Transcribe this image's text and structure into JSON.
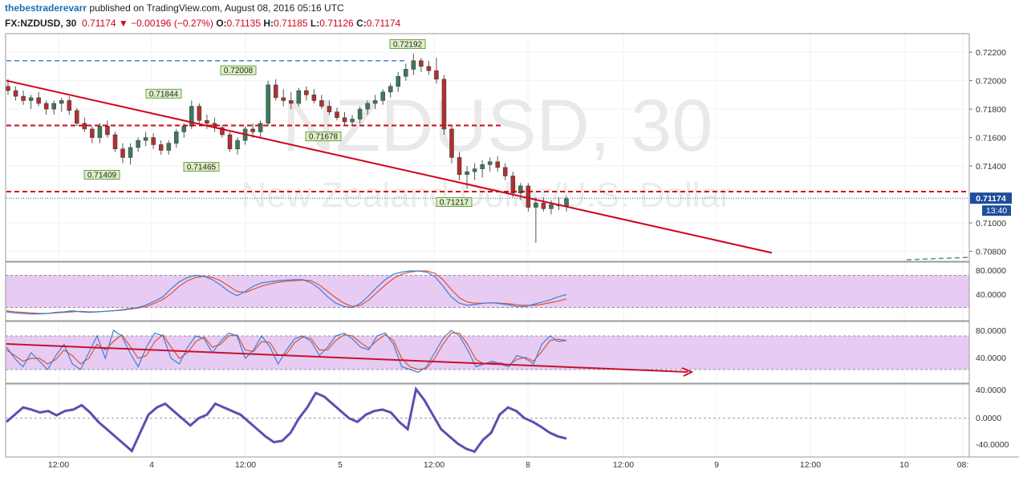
{
  "header": {
    "author": "thebestraderevarr",
    "published": " published on TradingView.com, August 08, 2016 05:16 UTC",
    "symbol": "FX:NZDUSD, 30",
    "last": "0.71174",
    "change": "−0.00196 (−0.27%)",
    "open_label": "O:",
    "open": "0.71135",
    "high_label": "H:",
    "high": "0.71185",
    "low_label": "L:",
    "low": "0.71126",
    "close_label": "C:",
    "close": "0.71174"
  },
  "watermark": {
    "line1": "NZDUSD, 30",
    "line2": "New Zealand Dollar/U.S. Dollar"
  },
  "price_axis": {
    "ticks": [
      "0.72200",
      "0.72000",
      "0.71800",
      "0.71600",
      "0.71400",
      "0.71000",
      "0.70800"
    ],
    "tick_values": [
      0.722,
      0.72,
      0.718,
      0.716,
      0.714,
      0.71,
      0.708
    ],
    "current_price": "0.71174",
    "countdown": "13:40"
  },
  "osc_axis_1": {
    "ticks": [
      "80.0000",
      "40.0000"
    ]
  },
  "osc_axis_2": {
    "ticks": [
      "80.0000",
      "40.0000"
    ]
  },
  "osc_axis_3": {
    "ticks": [
      "40.0000",
      "0.0000",
      "-40.0000"
    ]
  },
  "time_axis": {
    "labels": [
      "12:00",
      "4",
      "12:00",
      "5",
      "12:00",
      "8",
      "12:00",
      "9",
      "12:00",
      "10",
      "08:"
    ]
  },
  "chart_data": {
    "type": "candlestick",
    "title": "NZDUSD, 30",
    "subtitle": "New Zealand Dollar/U.S. Dollar",
    "x_labels": [
      "12:00",
      "4",
      "12:00",
      "5",
      "12:00",
      "8",
      "12:00",
      "9",
      "12:00",
      "10"
    ],
    "y_range": [
      0.7073,
      0.7233
    ],
    "ohlc": [
      [
        0.7196,
        0.7201,
        0.719,
        0.7193
      ],
      [
        0.7193,
        0.7196,
        0.7186,
        0.7189
      ],
      [
        0.7189,
        0.7193,
        0.7183,
        0.7186
      ],
      [
        0.7186,
        0.719,
        0.718,
        0.7188
      ],
      [
        0.7188,
        0.7192,
        0.7182,
        0.7184
      ],
      [
        0.7184,
        0.7186,
        0.7176,
        0.718
      ],
      [
        0.718,
        0.7186,
        0.7176,
        0.7184
      ],
      [
        0.7184,
        0.7188,
        0.7178,
        0.7186
      ],
      [
        0.7186,
        0.7189,
        0.7176,
        0.7179
      ],
      [
        0.7179,
        0.7181,
        0.7168,
        0.717
      ],
      [
        0.717,
        0.7174,
        0.7164,
        0.7166
      ],
      [
        0.7166,
        0.7168,
        0.7156,
        0.716
      ],
      [
        0.716,
        0.717,
        0.7156,
        0.7168
      ],
      [
        0.7168,
        0.7172,
        0.716,
        0.7162
      ],
      [
        0.7162,
        0.7164,
        0.715,
        0.7152
      ],
      [
        0.7152,
        0.7156,
        0.7142,
        0.7146
      ],
      [
        0.7146,
        0.7156,
        0.7141,
        0.7153
      ],
      [
        0.7153,
        0.716,
        0.715,
        0.7158
      ],
      [
        0.7158,
        0.7164,
        0.7154,
        0.716
      ],
      [
        0.716,
        0.7163,
        0.7152,
        0.7155
      ],
      [
        0.7155,
        0.7158,
        0.7148,
        0.7151
      ],
      [
        0.7151,
        0.7158,
        0.7148,
        0.7156
      ],
      [
        0.7156,
        0.7166,
        0.7153,
        0.7164
      ],
      [
        0.7164,
        0.717,
        0.716,
        0.7168
      ],
      [
        0.7168,
        0.7186,
        0.7166,
        0.7182
      ],
      [
        0.7182,
        0.7184,
        0.717,
        0.7172
      ],
      [
        0.7172,
        0.7176,
        0.7166,
        0.717
      ],
      [
        0.717,
        0.7174,
        0.7164,
        0.7167
      ],
      [
        0.7167,
        0.7169,
        0.716,
        0.7162
      ],
      [
        0.7162,
        0.7164,
        0.715,
        0.7152
      ],
      [
        0.7152,
        0.716,
        0.7148,
        0.7158
      ],
      [
        0.7158,
        0.7168,
        0.7155,
        0.7166
      ],
      [
        0.7166,
        0.717,
        0.716,
        0.7164
      ],
      [
        0.7164,
        0.7172,
        0.716,
        0.717
      ],
      [
        0.717,
        0.72,
        0.7168,
        0.7197
      ],
      [
        0.7197,
        0.7201,
        0.7186,
        0.7188
      ],
      [
        0.7188,
        0.7194,
        0.7182,
        0.7186
      ],
      [
        0.7186,
        0.7192,
        0.718,
        0.7184
      ],
      [
        0.7184,
        0.7195,
        0.7182,
        0.7193
      ],
      [
        0.7193,
        0.7196,
        0.7186,
        0.719
      ],
      [
        0.719,
        0.7194,
        0.7184,
        0.7186
      ],
      [
        0.7186,
        0.719,
        0.718,
        0.7182
      ],
      [
        0.7182,
        0.7186,
        0.7176,
        0.7178
      ],
      [
        0.7178,
        0.7181,
        0.7172,
        0.7174
      ],
      [
        0.7174,
        0.7178,
        0.7168,
        0.7171
      ],
      [
        0.7171,
        0.7176,
        0.7168,
        0.7173
      ],
      [
        0.7173,
        0.7182,
        0.717,
        0.718
      ],
      [
        0.718,
        0.7186,
        0.7176,
        0.7184
      ],
      [
        0.7184,
        0.719,
        0.718,
        0.7186
      ],
      [
        0.7186,
        0.7194,
        0.7183,
        0.7192
      ],
      [
        0.7192,
        0.7198,
        0.7188,
        0.7196
      ],
      [
        0.7196,
        0.7206,
        0.7192,
        0.7203
      ],
      [
        0.7203,
        0.7212,
        0.72,
        0.7208
      ],
      [
        0.7208,
        0.7219,
        0.7204,
        0.7214
      ],
      [
        0.7214,
        0.7216,
        0.7206,
        0.721
      ],
      [
        0.721,
        0.7214,
        0.7204,
        0.7207
      ],
      [
        0.7207,
        0.7216,
        0.7198,
        0.7201
      ],
      [
        0.7201,
        0.7204,
        0.7162,
        0.7166
      ],
      [
        0.7166,
        0.7168,
        0.7142,
        0.7146
      ],
      [
        0.7146,
        0.715,
        0.713,
        0.7134
      ],
      [
        0.7134,
        0.714,
        0.7124,
        0.7136
      ],
      [
        0.7136,
        0.7142,
        0.713,
        0.7138
      ],
      [
        0.7138,
        0.7144,
        0.7132,
        0.7141
      ],
      [
        0.7141,
        0.7146,
        0.7136,
        0.7143
      ],
      [
        0.7143,
        0.7147,
        0.7136,
        0.7139
      ],
      [
        0.7139,
        0.7142,
        0.713,
        0.7133
      ],
      [
        0.7133,
        0.7136,
        0.7118,
        0.7121
      ],
      [
        0.7121,
        0.7128,
        0.7116,
        0.7126
      ],
      [
        0.7126,
        0.7128,
        0.7108,
        0.7111
      ],
      [
        0.7111,
        0.7118,
        0.7086,
        0.7114
      ],
      [
        0.7114,
        0.7118,
        0.7108,
        0.711
      ],
      [
        0.711,
        0.7116,
        0.7106,
        0.7113
      ],
      [
        0.7113,
        0.7118,
        0.7109,
        0.7112
      ],
      [
        0.7112,
        0.7119,
        0.7108,
        0.7117
      ]
    ],
    "level_labels": [
      "0.72192",
      "0.72008",
      "0.71844",
      "0.71678",
      "0.71465",
      "0.71409",
      "0.71217"
    ],
    "level_label_values": [
      0.72192,
      0.72008,
      0.71844,
      0.71678,
      0.71465,
      0.71409,
      0.71217
    ],
    "horizontal_levels": [
      0.71685,
      0.7122,
      0.7214
    ],
    "trendline": {
      "from": 0.72,
      "to": 0.7079
    },
    "oscillator_1": {
      "ylim": [
        0,
        100
      ],
      "bands": [
        20,
        80
      ],
      "fast": [
        12,
        10,
        9,
        8,
        8,
        9,
        11,
        12,
        14,
        12,
        11,
        12,
        13,
        14,
        16,
        18,
        20,
        25,
        32,
        40,
        55,
        68,
        76,
        80,
        78,
        72,
        62,
        50,
        42,
        50,
        60,
        66,
        68,
        70,
        71,
        72,
        72,
        66,
        55,
        40,
        28,
        22,
        20,
        28,
        42,
        58,
        72,
        82,
        86,
        88,
        88,
        86,
        78,
        60,
        40,
        28,
        24,
        26,
        28,
        29,
        27,
        25,
        22,
        22,
        26,
        30,
        34,
        40,
        44
      ],
      "slow": [
        14,
        12,
        11,
        10,
        9,
        9,
        10,
        11,
        12,
        13,
        12,
        12,
        13,
        14,
        15,
        17,
        19,
        22,
        28,
        35,
        46,
        60,
        70,
        76,
        78,
        76,
        70,
        60,
        50,
        48,
        54,
        60,
        64,
        67,
        69,
        70,
        71,
        70,
        62,
        50,
        38,
        28,
        22,
        24,
        34,
        48,
        62,
        74,
        82,
        86,
        88,
        88,
        84,
        72,
        54,
        38,
        30,
        28,
        28,
        29,
        28,
        27,
        25,
        24,
        24,
        26,
        29,
        32,
        36
      ]
    },
    "oscillator_2": {
      "ylim": [
        0,
        100
      ],
      "bands": [
        20,
        80
      ],
      "fast": [
        60,
        40,
        25,
        50,
        35,
        20,
        45,
        65,
        30,
        20,
        50,
        80,
        40,
        90,
        80,
        50,
        25,
        60,
        85,
        80,
        40,
        30,
        60,
        80,
        75,
        50,
        70,
        85,
        80,
        40,
        55,
        80,
        60,
        30,
        55,
        75,
        80,
        70,
        45,
        60,
        80,
        85,
        75,
        60,
        55,
        80,
        85,
        65,
        25,
        20,
        15,
        25,
        50,
        75,
        90,
        80,
        55,
        25,
        30,
        35,
        30,
        25,
        45,
        40,
        30,
        65,
        80,
        70,
        72
      ],
      "slow": [
        55,
        45,
        35,
        40,
        40,
        30,
        38,
        55,
        45,
        30,
        40,
        65,
        55,
        70,
        82,
        62,
        40,
        45,
        70,
        82,
        60,
        40,
        50,
        70,
        78,
        60,
        65,
        80,
        82,
        55,
        52,
        70,
        68,
        45,
        48,
        68,
        78,
        75,
        55,
        55,
        72,
        82,
        80,
        68,
        58,
        72,
        82,
        72,
        40,
        25,
        20,
        22,
        40,
        65,
        85,
        85,
        65,
        38,
        30,
        32,
        32,
        28,
        38,
        42,
        35,
        52,
        72,
        74,
        72
      ]
    },
    "oscillator_3": {
      "ylim": [
        -50,
        45
      ],
      "zero": 0,
      "values": [
        -5,
        5,
        15,
        12,
        8,
        10,
        4,
        10,
        12,
        18,
        8,
        -5,
        -15,
        -25,
        -35,
        -45,
        -20,
        5,
        15,
        20,
        10,
        0,
        -10,
        0,
        5,
        20,
        15,
        10,
        5,
        -5,
        -15,
        -25,
        -33,
        -31,
        -20,
        0,
        15,
        35,
        30,
        20,
        10,
        0,
        -5,
        5,
        10,
        12,
        8,
        -5,
        -15,
        40,
        25,
        5,
        -15,
        -25,
        -35,
        -42,
        -46,
        -30,
        -20,
        5,
        15,
        10,
        0,
        -5,
        -12,
        -20,
        -25,
        -28
      ]
    }
  }
}
